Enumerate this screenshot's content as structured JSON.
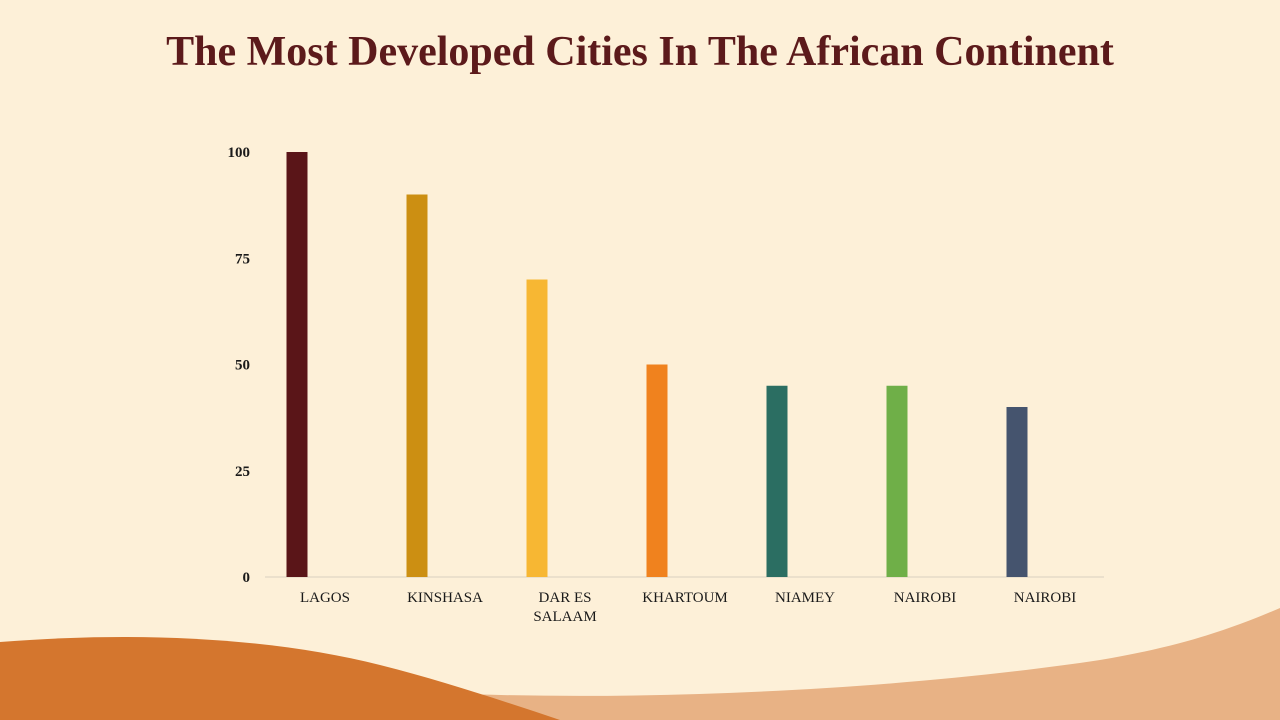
{
  "title": "The Most Developed Cities In The African Continent",
  "chart_data": {
    "type": "bar",
    "categories": [
      "LAGOS",
      "KINSHASA",
      "DAR ES SALAAM",
      "KHARTOUM",
      "NIAMEY",
      "NAIROBI",
      "NAIROBI"
    ],
    "category_lines": [
      [
        "LAGOS"
      ],
      [
        "KINSHASA"
      ],
      [
        "DAR ES",
        "SALAAM"
      ],
      [
        "KHARTOUM"
      ],
      [
        "NIAMEY"
      ],
      [
        "NAIROBI"
      ],
      [
        "NAIROBI"
      ]
    ],
    "values": [
      100,
      90,
      70,
      50,
      45,
      45,
      40
    ],
    "colors": [
      "#5a1518",
      "#cc8f12",
      "#f7b733",
      "#f0821e",
      "#2b6e62",
      "#6faf48",
      "#45546e"
    ],
    "y_ticks": [
      0,
      25,
      50,
      75,
      100
    ],
    "ylim": [
      0,
      100
    ],
    "title": "",
    "xlabel": "",
    "ylabel": "",
    "grid": false,
    "legend": "none"
  },
  "colors": {
    "background": "#fdf0d8",
    "title": "#5c1a1b",
    "wave_dark": "#d4762e",
    "wave_light": "#e8b285"
  }
}
